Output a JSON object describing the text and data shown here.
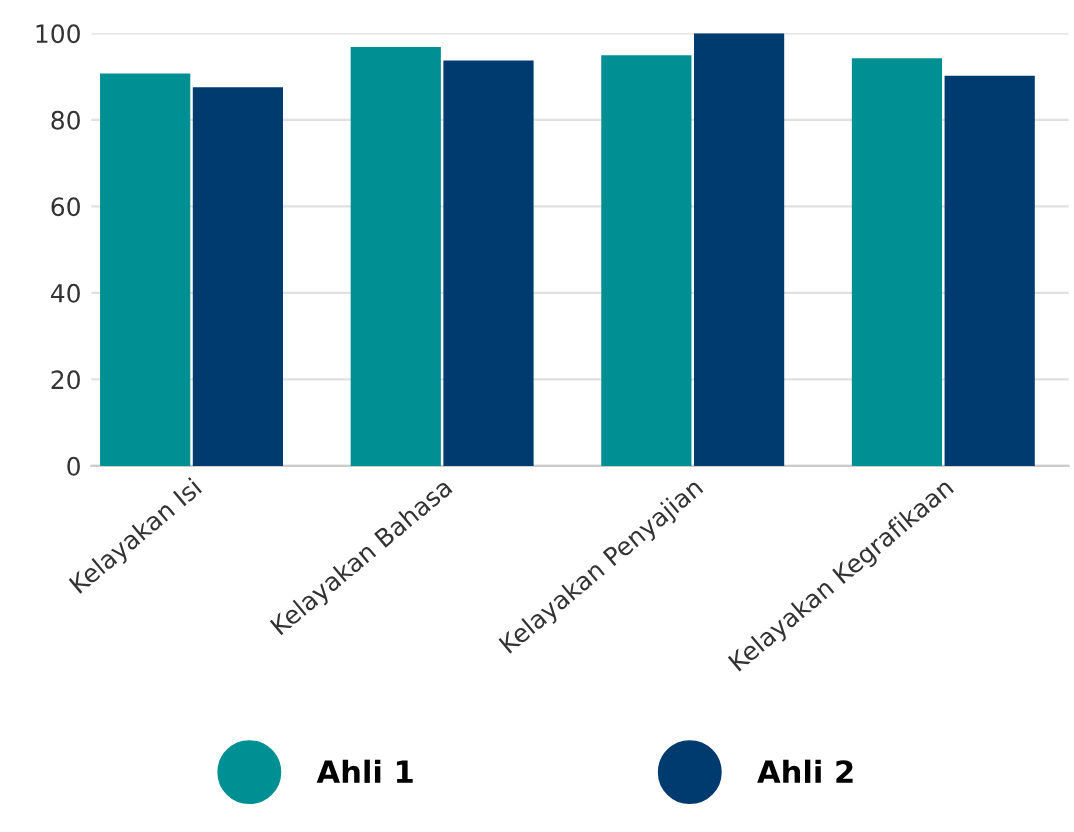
{
  "chart_data": {
    "type": "bar",
    "categories": [
      "Kelayakan Isi",
      "Kelayakan Bahasa",
      "Kelayakan Penyajian",
      "Kelayakan Kegrafikaan"
    ],
    "series": [
      {
        "name": "Ahli 1",
        "color": "#009094",
        "values": [
          90.7,
          96.8,
          94.9,
          94.2
        ]
      },
      {
        "name": "Ahli 2",
        "color": "#003b6f",
        "values": [
          87.5,
          93.7,
          100,
          90.2
        ]
      }
    ],
    "ylim": [
      0,
      100
    ],
    "yticks": [
      0,
      20,
      40,
      60,
      80,
      100
    ],
    "grid": "y",
    "legend": "bottom"
  }
}
